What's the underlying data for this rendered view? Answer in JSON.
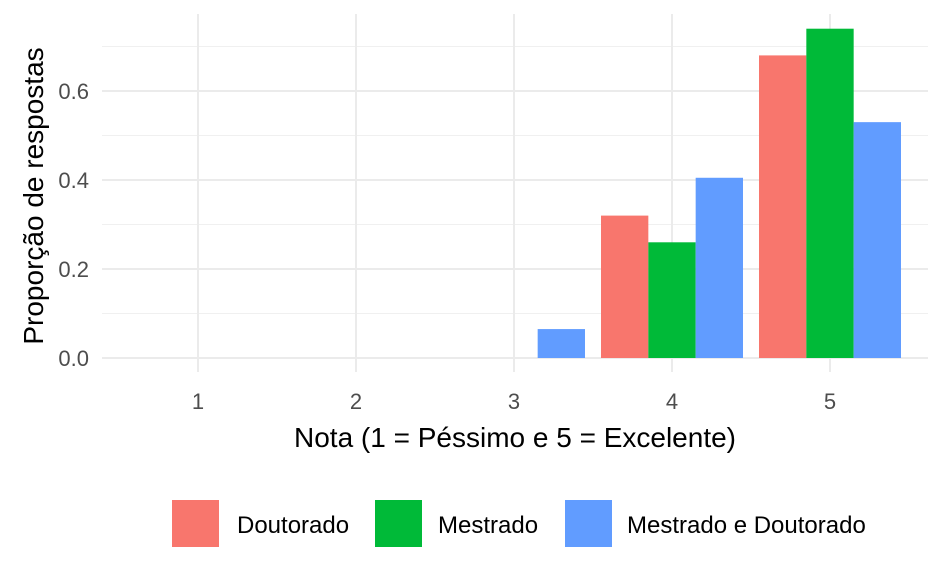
{
  "chart_data": {
    "type": "bar",
    "xlabel": "Nota (1 = Péssimo e 5 = Excelente)",
    "ylabel": "Proporção de respostas",
    "categories": [
      "1",
      "2",
      "3",
      "4",
      "5"
    ],
    "yticks": [
      "0.0",
      "0.2",
      "0.4",
      "0.6"
    ],
    "ylim": [
      0,
      0.74
    ],
    "grid": true,
    "legend_position": "bottom",
    "series": [
      {
        "name": "Doutorado",
        "color": "#F8766D",
        "values": [
          null,
          null,
          null,
          0.32,
          0.68
        ]
      },
      {
        "name": "Mestrado",
        "color": "#00BA38",
        "values": [
          null,
          null,
          null,
          0.26,
          0.74
        ]
      },
      {
        "name": "Mestrado e Doutorado",
        "color": "#619CFF",
        "values": [
          null,
          null,
          0.065,
          0.405,
          0.53
        ]
      }
    ]
  }
}
